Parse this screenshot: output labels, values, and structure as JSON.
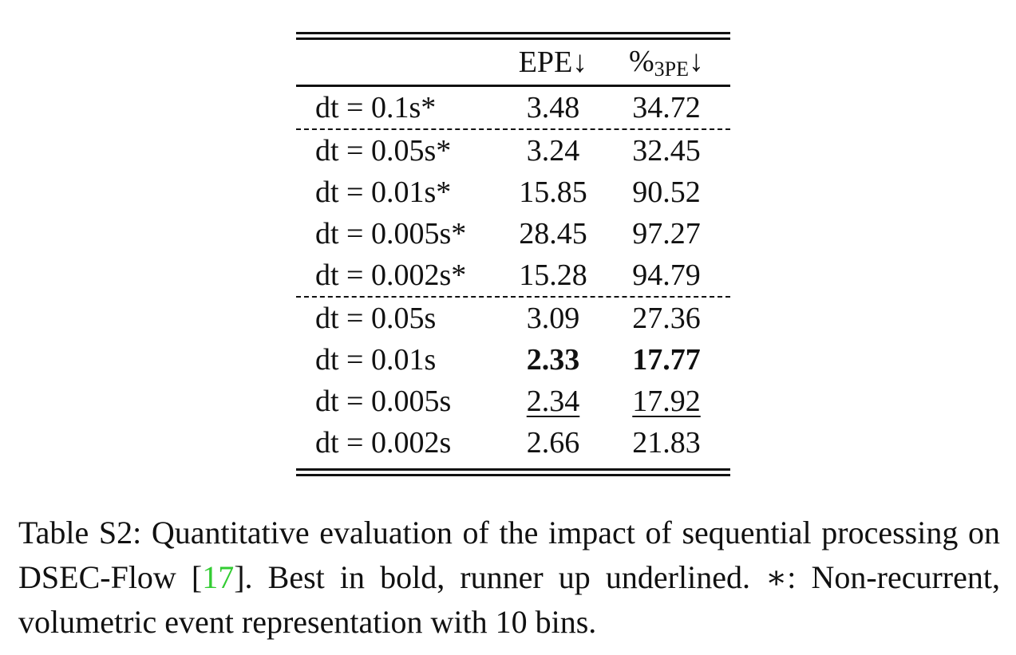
{
  "table": {
    "header": {
      "col1": "",
      "col2": "EPE↓",
      "col3_main": "%",
      "col3_sub": "3PE",
      "col3_arrow": "↓"
    },
    "groups": [
      {
        "rows": [
          {
            "label": "dt = 0.1s*",
            "epe": "3.48",
            "pe": "34.72",
            "epe_style": "",
            "pe_style": ""
          }
        ]
      },
      {
        "rows": [
          {
            "label": "dt = 0.05s*",
            "epe": "3.24",
            "pe": "32.45",
            "epe_style": "",
            "pe_style": ""
          },
          {
            "label": "dt = 0.01s*",
            "epe": "15.85",
            "pe": "90.52",
            "epe_style": "",
            "pe_style": ""
          },
          {
            "label": "dt = 0.005s*",
            "epe": "28.45",
            "pe": "97.27",
            "epe_style": "",
            "pe_style": ""
          },
          {
            "label": "dt = 0.002s*",
            "epe": "15.28",
            "pe": "94.79",
            "epe_style": "",
            "pe_style": ""
          }
        ]
      },
      {
        "rows": [
          {
            "label": "dt = 0.05s",
            "epe": "3.09",
            "pe": "27.36",
            "epe_style": "",
            "pe_style": ""
          },
          {
            "label": "dt = 0.01s",
            "epe": "2.33",
            "pe": "17.77",
            "epe_style": "bold",
            "pe_style": "bold"
          },
          {
            "label": "dt = 0.005s",
            "epe": "2.34",
            "pe": "17.92",
            "epe_style": "underline",
            "pe_style": "underline"
          },
          {
            "label": "dt = 0.002s",
            "epe": "2.66",
            "pe": "21.83",
            "epe_style": "",
            "pe_style": ""
          }
        ]
      }
    ]
  },
  "caption": {
    "part1": "Table S2: Quantitative evaluation of the impact of sequential processing on DSEC-Flow [",
    "cite": "17",
    "part2": "]. Best in bold, runner up underlined. ∗: Non-recurrent, volumetric event representation with 10 bins.",
    "cite_color": "#33cc33"
  }
}
